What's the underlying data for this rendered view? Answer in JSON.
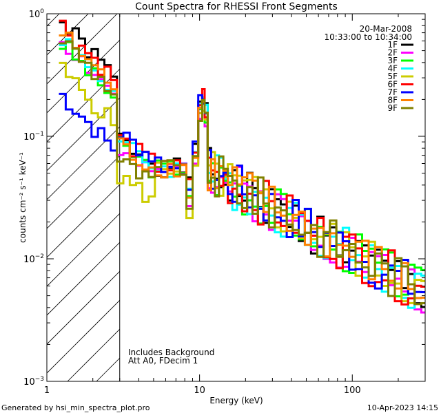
{
  "chart_data": {
    "type": "line",
    "title": "Count Spectra for RHESSI Front Segments",
    "xlabel": "Energy (keV)",
    "ylabel": "counts cm⁻² s⁻¹ keV⁻¹",
    "xscale": "log",
    "yscale": "log",
    "xlim": [
      1,
      300
    ],
    "ylim": [
      0.001,
      1
    ],
    "x_ticks": [
      {
        "value": 1,
        "label": "1"
      },
      {
        "value": 10,
        "label": "10"
      },
      {
        "value": 100,
        "label": "100"
      }
    ],
    "y_ticks": [
      {
        "value": 0.001,
        "base": "10",
        "exp": "−3"
      },
      {
        "value": 0.01,
        "base": "10",
        "exp": "−2"
      },
      {
        "value": 0.1,
        "base": "10",
        "exp": "−1"
      },
      {
        "value": 1,
        "base": "10",
        "exp": "0"
      }
    ],
    "excluded_region": {
      "from": 1,
      "to": 3
    },
    "date": "20-Mar-2008",
    "time_range": "10:33:00 to 10:34:00",
    "notes": [
      "Includes Background",
      "Att A0, FDecim 1"
    ],
    "footer_left": "Generated by hsi_min_spectra_plot.pro",
    "footer_right": "10-Apr-2023 14:15",
    "series": [
      {
        "name": "1F",
        "color": "#000000",
        "amp": 0.85,
        "pk": 0.2,
        "low": 0.09,
        "seed": 1
      },
      {
        "name": "2F",
        "color": "#ff00ff",
        "amp": 0.62,
        "pk": 0.17,
        "low": 0.07,
        "seed": 2
      },
      {
        "name": "3F",
        "color": "#00ff00",
        "amp": 0.58,
        "pk": 0.16,
        "low": 0.08,
        "seed": 3
      },
      {
        "name": "4F",
        "color": "#00ffff",
        "amp": 0.66,
        "pk": 0.21,
        "low": 0.085,
        "seed": 4
      },
      {
        "name": "5F",
        "color": "#cccc00",
        "amp": 0.35,
        "pk": 0.15,
        "low": 0.045,
        "seed": 5
      },
      {
        "name": "6F",
        "color": "#ff0000",
        "amp": 0.82,
        "pk": 0.19,
        "low": 0.09,
        "seed": 6
      },
      {
        "name": "7F",
        "color": "#0000ff",
        "amp": 0.22,
        "pk": 0.18,
        "low": 0.1,
        "seed": 7
      },
      {
        "name": "8F",
        "color": "#ff8000",
        "amp": 0.7,
        "pk": 0.17,
        "low": 0.08,
        "seed": 8
      },
      {
        "name": "9F",
        "color": "#808000",
        "amp": 0.64,
        "pk": 0.16,
        "low": 0.06,
        "seed": 9
      }
    ],
    "bin_edges": [
      1.2,
      1.33,
      1.47,
      1.62,
      1.78,
      1.96,
      2.16,
      2.38,
      2.62,
      2.88,
      3.17,
      3.49,
      3.84,
      4.22,
      4.64,
      5.1,
      5.6,
      6.16,
      6.78,
      7.46,
      8.2,
      9.0,
      9.8,
      10.4,
      10.8,
      11.3,
      11.9,
      12.6,
      13.4,
      14.3,
      15.3,
      16.4,
      17.6,
      19.0,
      20.5,
      22.2,
      24.1,
      26.2,
      28.5,
      31.1,
      34.0,
      37.2,
      40.7,
      44.6,
      48.9,
      53.7,
      59.0,
      64.9,
      71.4,
      78.6,
      86.6,
      95.4,
      105,
      116,
      128,
      141,
      156,
      172,
      190,
      210,
      232,
      256,
      283,
      300
    ]
  }
}
